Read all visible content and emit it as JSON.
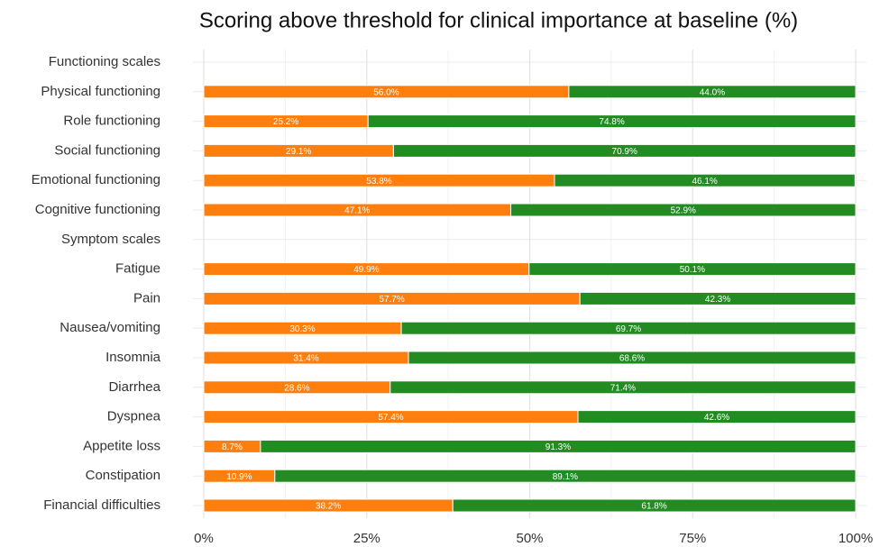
{
  "chart_data": {
    "type": "stacked-barh",
    "title": "Scoring above threshold for clinical importance at baseline (%)",
    "categories": [
      "Functioning scales",
      "Physical functioning",
      "Role functioning",
      "Social functioning",
      "Emotional functioning",
      "Cognitive functioning",
      "Symptom scales",
      "Fatigue",
      "Pain",
      "Nausea/vomiting",
      "Insomnia",
      "Diarrhea",
      "Dyspnea",
      "Appetite loss",
      "Constipation",
      "Financial difficulties"
    ],
    "series": [
      {
        "color": "#ff7f0e",
        "values": [
          null,
          56.0,
          25.2,
          29.1,
          53.8,
          47.1,
          null,
          49.9,
          57.7,
          30.3,
          31.4,
          28.6,
          57.4,
          8.7,
          10.9,
          38.2
        ],
        "value_labels": [
          null,
          "56.0%",
          "25.2%",
          "29.1%",
          "53.8%",
          "47.1%",
          null,
          "49.9%",
          "57.7%",
          "30.3%",
          "31.4%",
          "28.6%",
          "57.4%",
          "8.7%",
          "10.9%",
          "38.2%"
        ]
      },
      {
        "color": "#228b22",
        "values": [
          null,
          44.0,
          74.8,
          70.9,
          46.1,
          52.9,
          null,
          50.1,
          42.3,
          69.7,
          68.6,
          71.4,
          42.6,
          91.3,
          89.1,
          61.8
        ],
        "value_labels": [
          null,
          "44.0%",
          "74.8%",
          "70.9%",
          "46.1%",
          "52.9%",
          null,
          "50.1%",
          "42.3%",
          "69.7%",
          "68.6%",
          "71.4%",
          "42.6%",
          "91.3%",
          "89.1%",
          "61.8%"
        ]
      }
    ],
    "xlim": [
      0,
      100
    ],
    "xticks": [
      {
        "value": 0,
        "label": "0%"
      },
      {
        "value": 25,
        "label": "25%"
      },
      {
        "value": 50,
        "label": "50%"
      },
      {
        "value": 75,
        "label": "75%"
      },
      {
        "value": 100,
        "label": "100%"
      }
    ],
    "grid": true
  }
}
